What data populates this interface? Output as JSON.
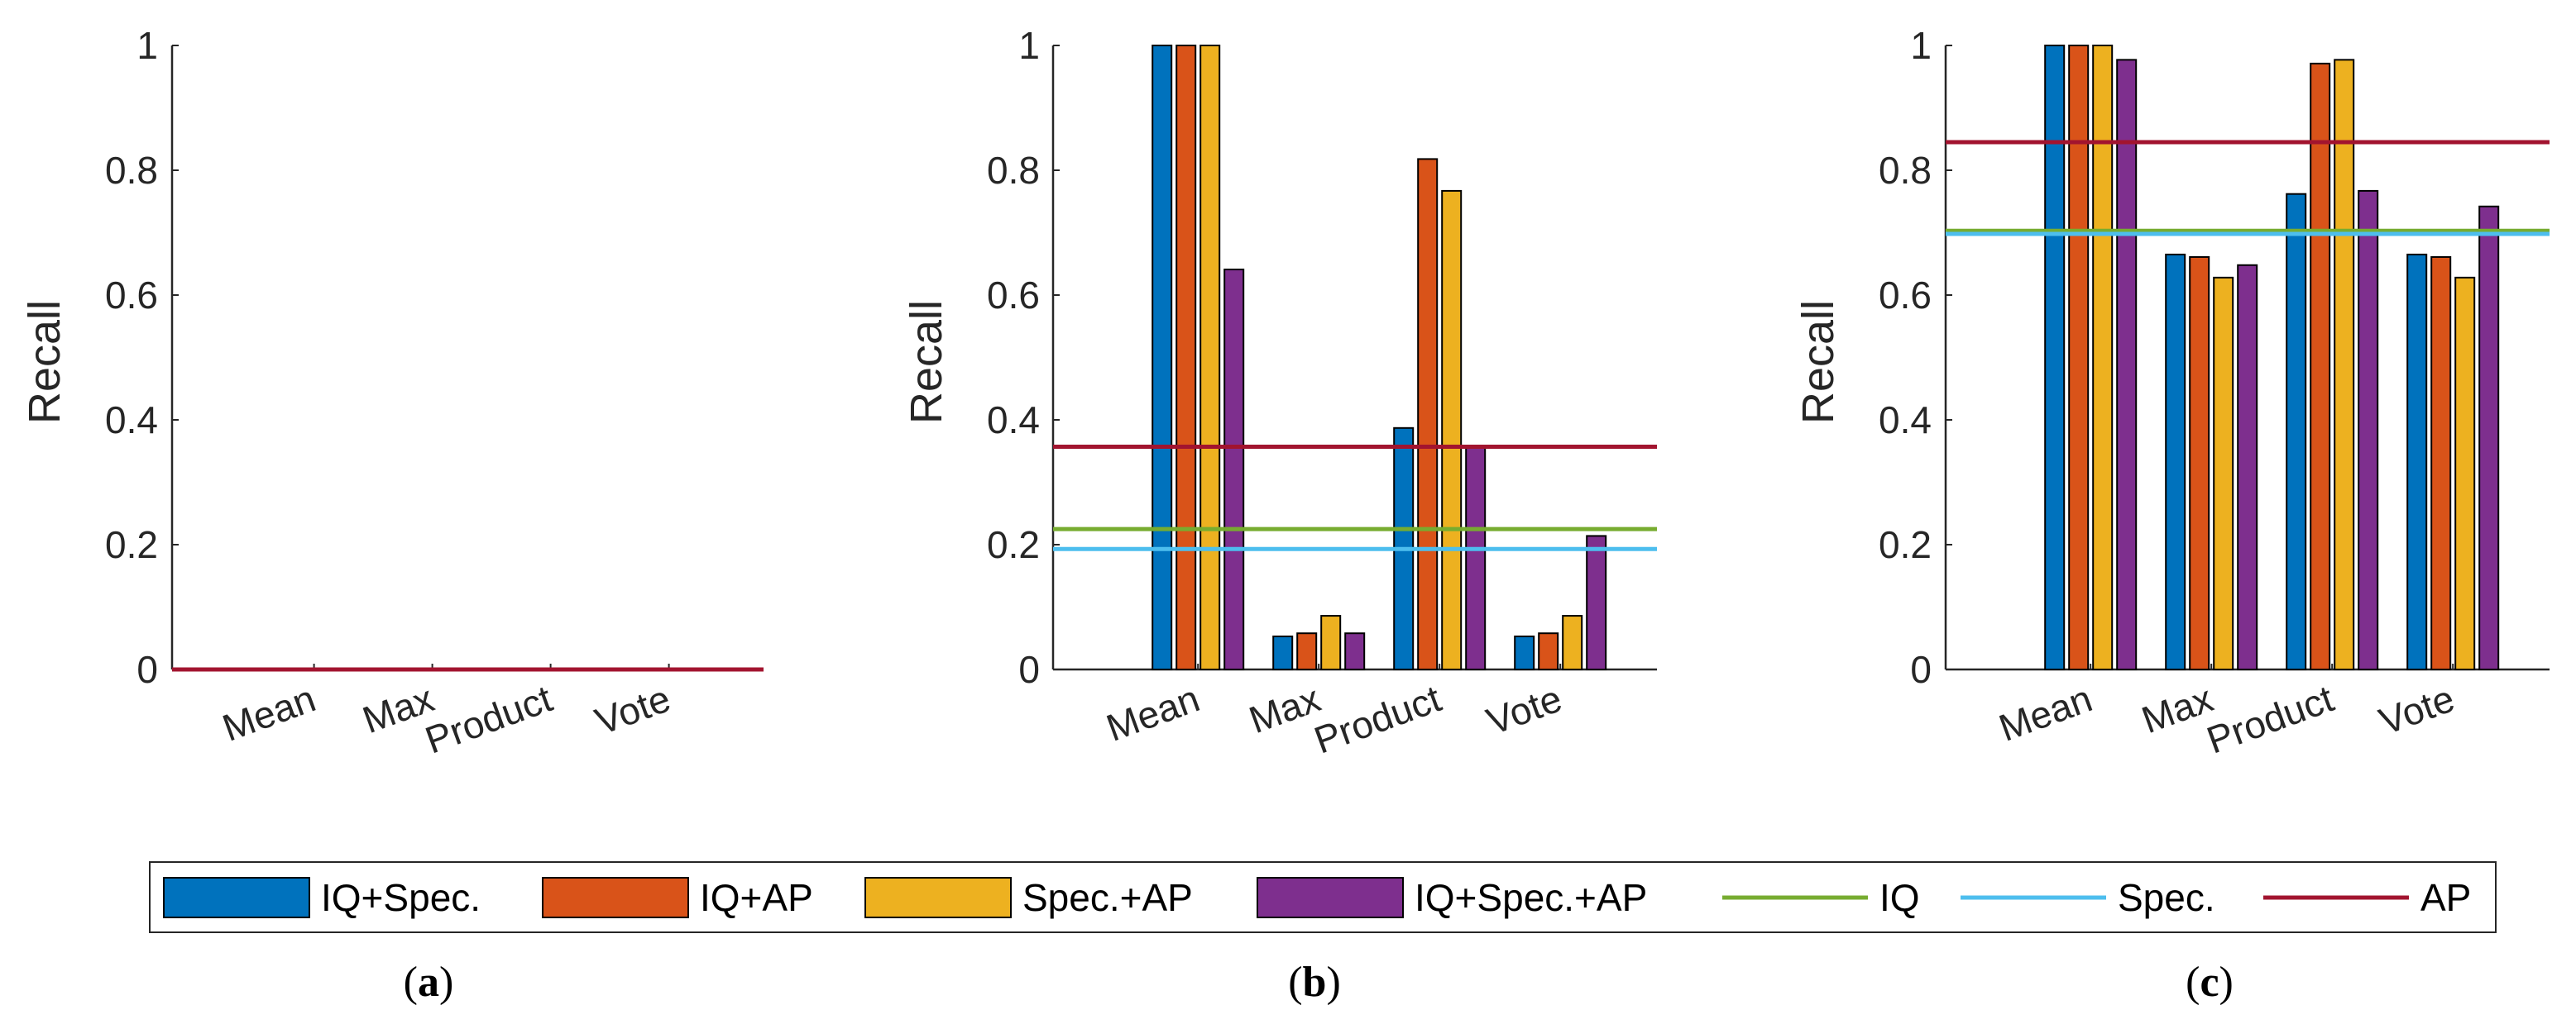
{
  "chart_data": {
    "type": "bar",
    "categories": [
      "Mean",
      "Max",
      "Product",
      "Vote"
    ],
    "ylabel": "Recall",
    "ylim": [
      0,
      1
    ],
    "yticks": [
      "0",
      "0.2",
      "0.4",
      "0.6",
      "0.8",
      "1"
    ],
    "legend": {
      "placement": "bottom",
      "entries": [
        {
          "name": "IQ+Spec.",
          "kind": "bar",
          "color": "#0072BD"
        },
        {
          "name": "IQ+AP",
          "kind": "bar",
          "color": "#D95319"
        },
        {
          "name": "Spec.+AP",
          "kind": "bar",
          "color": "#EDB120"
        },
        {
          "name": "IQ+Spec.+AP",
          "kind": "bar",
          "color": "#7E2F8E"
        },
        {
          "name": "IQ",
          "kind": "line",
          "color": "#77AC30"
        },
        {
          "name": "Spec.",
          "kind": "line",
          "color": "#4DBEEE"
        },
        {
          "name": "AP",
          "kind": "line",
          "color": "#A2142F"
        }
      ]
    },
    "panels": [
      {
        "id": "a",
        "label_open": "(",
        "label_letter": "a",
        "label_close": ")",
        "series": [
          {
            "name": "IQ+Spec.",
            "values": [
              0,
              0,
              0,
              0
            ]
          },
          {
            "name": "IQ+AP",
            "values": [
              0,
              0,
              0,
              0
            ]
          },
          {
            "name": "Spec.+AP",
            "values": [
              0,
              0,
              0,
              0
            ]
          },
          {
            "name": "IQ+Spec.+AP",
            "values": [
              0,
              0,
              0,
              0
            ]
          }
        ],
        "reference_lines": [
          {
            "name": "IQ",
            "value": 0
          },
          {
            "name": "Spec.",
            "value": 0
          },
          {
            "name": "AP",
            "value": 0
          }
        ]
      },
      {
        "id": "b",
        "label_open": "(",
        "label_letter": "b",
        "label_close": ")",
        "series": [
          {
            "name": "IQ+Spec.",
            "values": [
              1.0,
              0.053,
              0.387,
              0.053
            ]
          },
          {
            "name": "IQ+AP",
            "values": [
              1.0,
              0.058,
              0.818,
              0.058
            ]
          },
          {
            "name": "Spec.+AP",
            "values": [
              1.0,
              0.086,
              0.767,
              0.086
            ]
          },
          {
            "name": "IQ+Spec.+AP",
            "values": [
              0.641,
              0.058,
              0.355,
              0.214
            ]
          }
        ],
        "reference_lines": [
          {
            "name": "IQ",
            "value": 0.225
          },
          {
            "name": "Spec.",
            "value": 0.193
          },
          {
            "name": "AP",
            "value": 0.357
          }
        ]
      },
      {
        "id": "c",
        "label_open": "(",
        "label_letter": "c",
        "label_close": ")",
        "series": [
          {
            "name": "IQ+Spec.",
            "values": [
              1.0,
              0.665,
              0.762,
              0.665
            ]
          },
          {
            "name": "IQ+AP",
            "values": [
              1.0,
              0.661,
              0.971,
              0.661
            ]
          },
          {
            "name": "Spec.+AP",
            "values": [
              1.0,
              0.628,
              0.977,
              0.628
            ]
          },
          {
            "name": "IQ+Spec.+AP",
            "values": [
              0.977,
              0.648,
              0.767,
              0.742
            ]
          }
        ],
        "reference_lines": [
          {
            "name": "IQ",
            "value": 0.703
          },
          {
            "name": "Spec.",
            "value": 0.698
          },
          {
            "name": "AP",
            "value": 0.845
          }
        ]
      }
    ]
  }
}
